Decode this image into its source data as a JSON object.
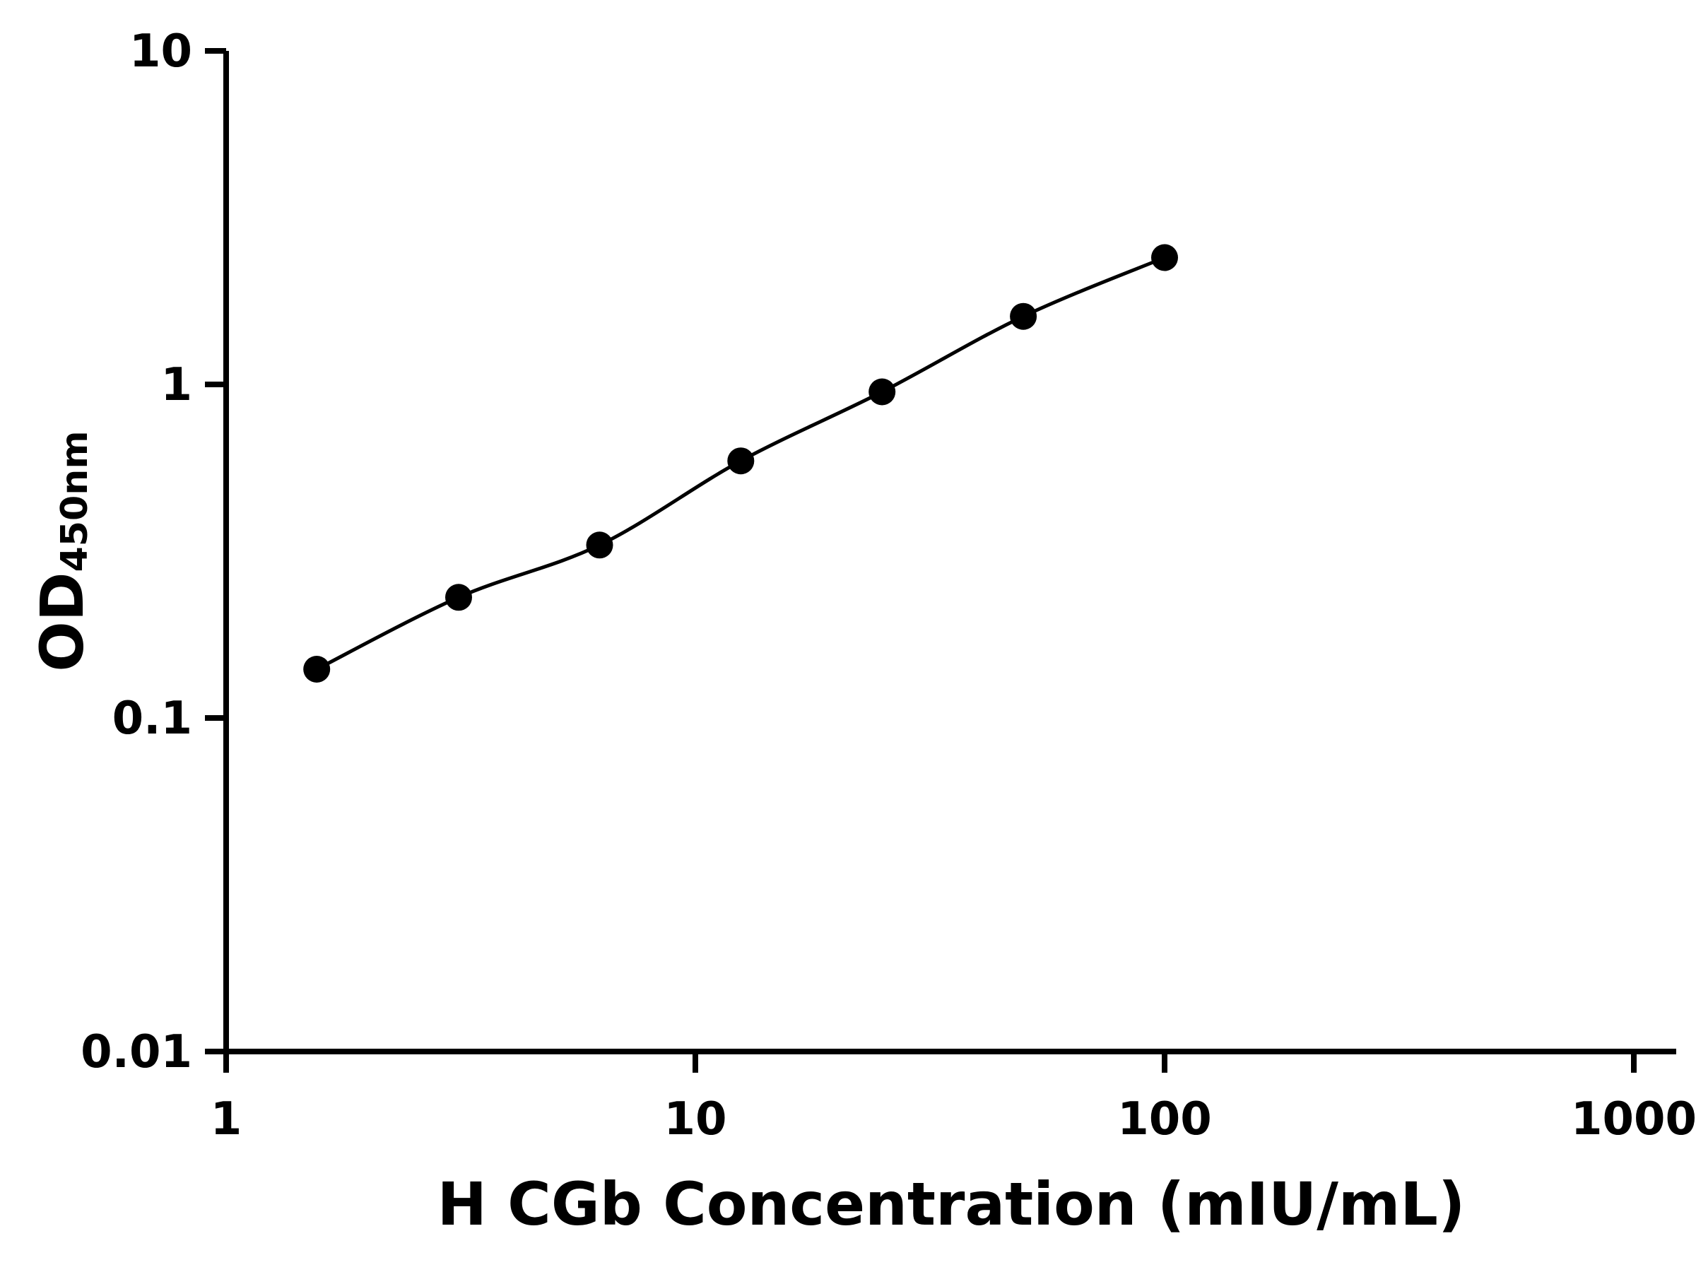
{
  "chart": {
    "ylabel_main": "OD",
    "ylabel_sub": "450nm"
  },
  "chart_data": {
    "type": "scatter",
    "subtype": "standard-curve-line",
    "title": "",
    "xlabel": "H CGb Concentration (mIU/mL)",
    "ylabel": "OD450nm",
    "x_scale": "log",
    "y_scale": "log",
    "xlim": [
      1,
      1000
    ],
    "ylim": [
      0.01,
      10
    ],
    "x_ticks": [
      1,
      10,
      100,
      1000
    ],
    "y_ticks": [
      0.01,
      0.1,
      1,
      10
    ],
    "grid": false,
    "legend": "none",
    "x": [
      1.56,
      3.13,
      6.25,
      12.5,
      25,
      50,
      100
    ],
    "y": [
      0.14,
      0.23,
      0.33,
      0.59,
      0.95,
      1.6,
      2.4
    ],
    "marker_color": "#000000",
    "line_color": "#000000",
    "axis_color": "#000000",
    "background_color": "#ffffff"
  }
}
